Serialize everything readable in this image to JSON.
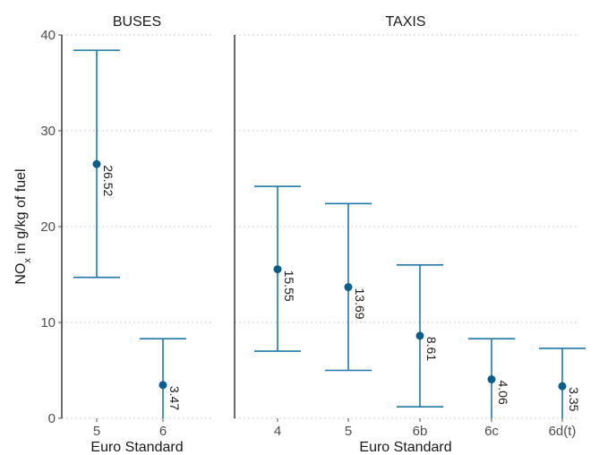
{
  "chart_data": {
    "type": "errorbar",
    "ylabel_main": "NO",
    "ylabel_sub": "x",
    "ylabel_rest": " in g/kg of fuel",
    "ylim": [
      0,
      40
    ],
    "yticks": [
      "0",
      "10",
      "20",
      "30",
      "40"
    ],
    "grid": "horizontal-dotted",
    "color": "#1f78a8",
    "point_color": "#0b5d8e",
    "panels": [
      {
        "title": "BUSES",
        "xlabel": "Euro Standard",
        "points": [
          {
            "category": "5",
            "value": 26.52,
            "label": "26.52",
            "low": 14.7,
            "high": 38.4
          },
          {
            "category": "6",
            "value": 3.47,
            "label": "3.47",
            "low": 0.0,
            "high": 8.3
          }
        ]
      },
      {
        "title": "TAXIS",
        "xlabel": "Euro Standard",
        "points": [
          {
            "category": "4",
            "value": 15.55,
            "label": "15.55",
            "low": 7.0,
            "high": 24.2
          },
          {
            "category": "5",
            "value": 13.69,
            "label": "13.69",
            "low": 5.0,
            "high": 22.4
          },
          {
            "category": "6b",
            "value": 8.61,
            "label": "8.61",
            "low": 1.2,
            "high": 16.0
          },
          {
            "category": "6c",
            "value": 4.06,
            "label": "4.06",
            "low": 0.0,
            "high": 8.3
          },
          {
            "category": "6d(t)",
            "value": 3.35,
            "label": "3.35",
            "low": 0.0,
            "high": 7.3
          }
        ]
      }
    ]
  }
}
